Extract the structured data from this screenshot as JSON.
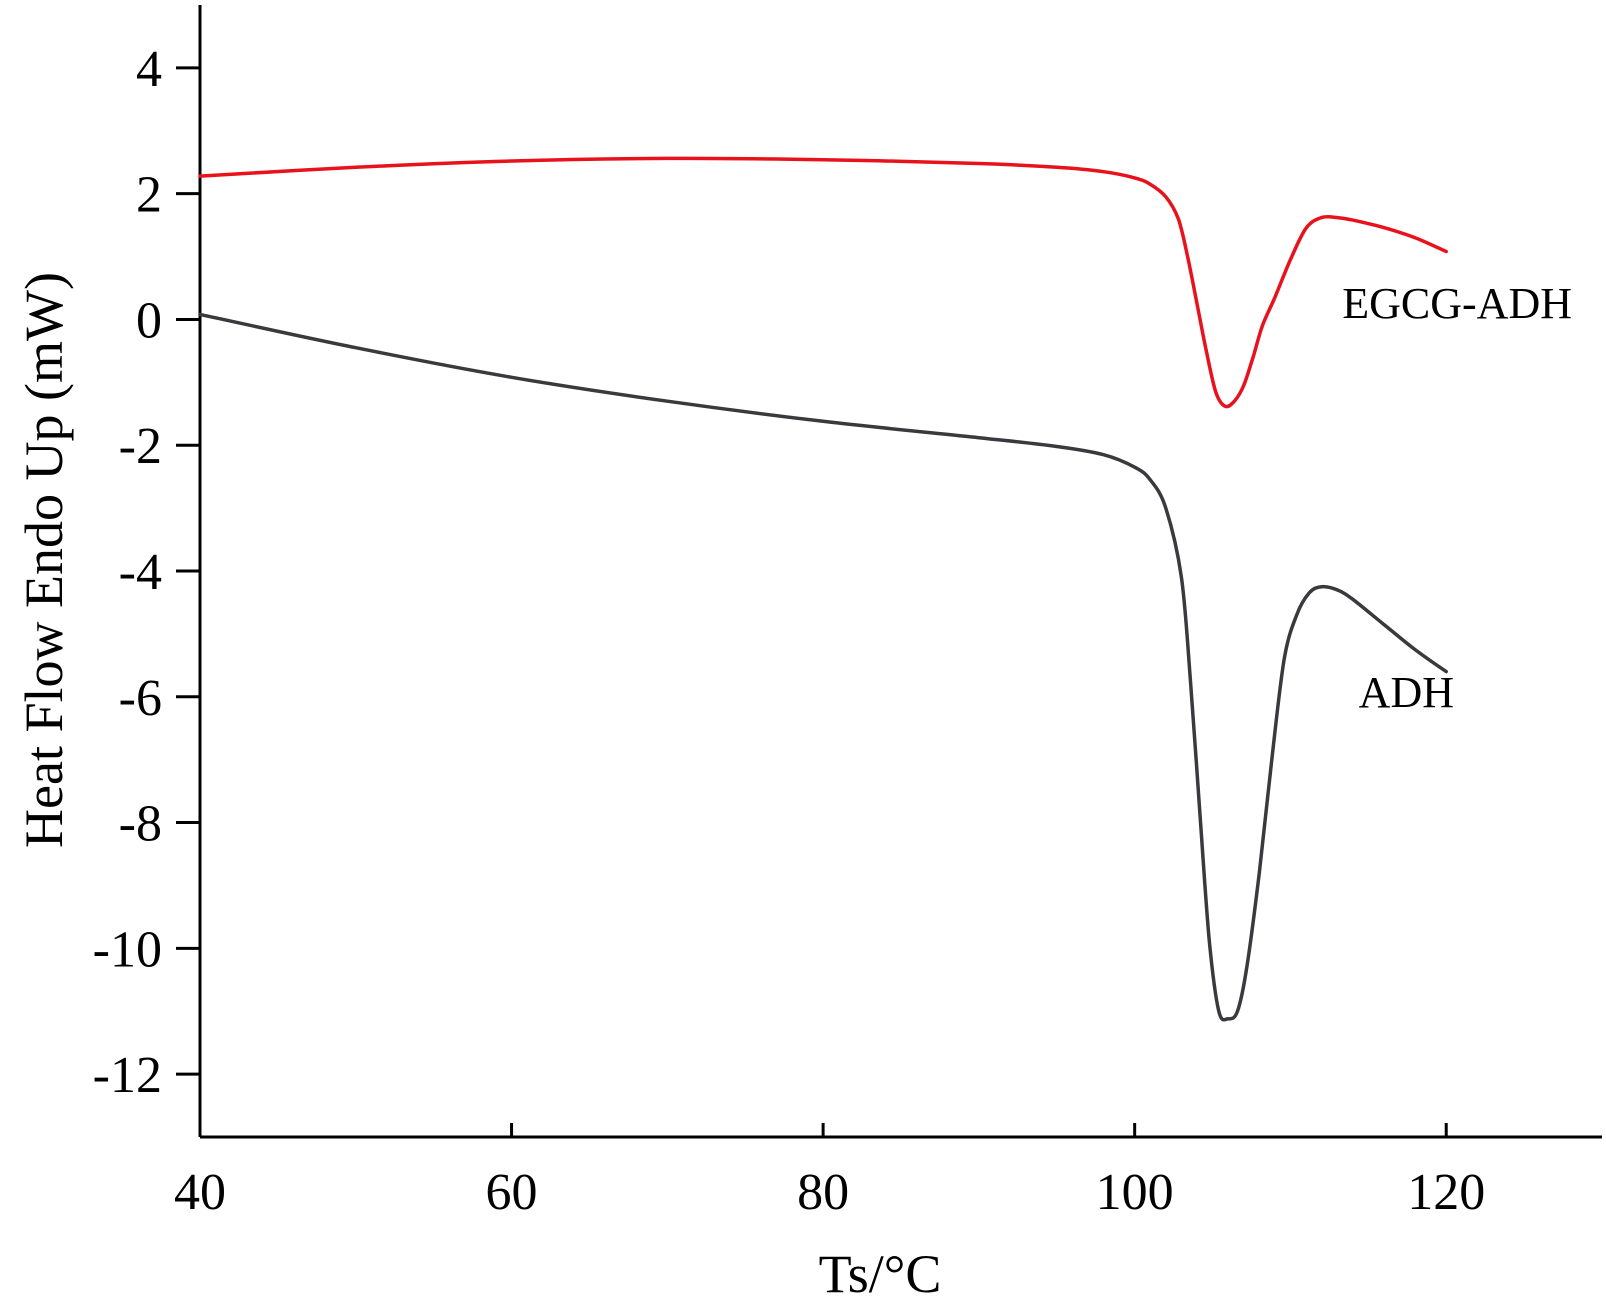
{
  "chart_data": {
    "type": "line",
    "xlabel": "Ts/°C",
    "ylabel": "Heat Flow Endo Up (mW)",
    "xlim": [
      40,
      130
    ],
    "ylim": [
      -13,
      5
    ],
    "x_ticks": [
      40,
      60,
      80,
      100,
      120
    ],
    "y_ticks": [
      4,
      2,
      0,
      -2,
      -4,
      -6,
      -8,
      -10,
      -12
    ],
    "x_tick_labels": [
      "40",
      "60",
      "80",
      "100",
      "120"
    ],
    "y_tick_labels": [
      "4",
      "2",
      "0",
      "-2",
      "-4",
      "-6",
      "-8",
      "-10",
      "-12"
    ],
    "grid": false,
    "series": [
      {
        "name": "EGCG-ADH",
        "color": "#e8121c",
        "x": [
          40,
          50,
          60,
          70,
          80,
          90,
          95,
          98,
          100,
          101,
          102,
          102.8,
          103.4,
          104,
          104.6,
          105.2,
          105.8,
          106.4,
          107,
          107.6,
          108.2,
          109,
          110,
          111,
          112,
          113,
          114,
          116,
          118,
          120
        ],
        "y": [
          2.28,
          2.42,
          2.52,
          2.56,
          2.54,
          2.48,
          2.42,
          2.35,
          2.25,
          2.15,
          1.95,
          1.6,
          1.0,
          0.25,
          -0.5,
          -1.15,
          -1.38,
          -1.3,
          -1.05,
          -0.6,
          -0.1,
          0.35,
          0.95,
          1.45,
          1.62,
          1.62,
          1.58,
          1.46,
          1.3,
          1.08
        ]
      },
      {
        "name": "ADH",
        "color": "#3a3a3e",
        "x": [
          40,
          50,
          60,
          70,
          80,
          90,
          95,
          98,
          100,
          101,
          102,
          103,
          103.6,
          104.2,
          104.8,
          105.4,
          106,
          106.6,
          107.2,
          108,
          108.8,
          109.6,
          110.4,
          111.2,
          112,
          113,
          114,
          116,
          118,
          120
        ],
        "y": [
          0.08,
          -0.45,
          -0.92,
          -1.3,
          -1.62,
          -1.88,
          -2.02,
          -2.15,
          -2.35,
          -2.55,
          -3.0,
          -4.1,
          -5.8,
          -7.9,
          -9.9,
          -11.0,
          -11.12,
          -11.0,
          -10.3,
          -8.8,
          -7.0,
          -5.4,
          -4.7,
          -4.35,
          -4.25,
          -4.3,
          -4.45,
          -4.85,
          -5.25,
          -5.6
        ]
      }
    ]
  }
}
